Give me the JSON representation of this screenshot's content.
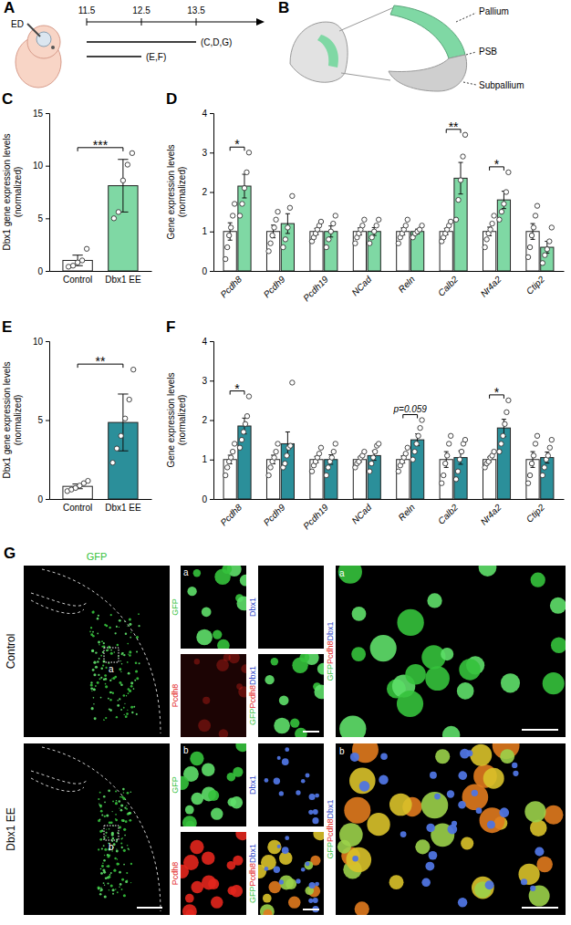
{
  "chart_data": [
    {
      "panel": "C",
      "type": "bar",
      "y_label": "Dbx1 gene expression levels (normalized)",
      "categories": [
        "Control",
        "Dbx1 EE"
      ],
      "values": [
        1.0,
        8.1
      ],
      "errors": [
        0.5,
        2.5
      ],
      "points": [
        [
          0.4,
          0.5,
          0.8,
          1.0,
          2.1
        ],
        [
          5.0,
          5.6,
          8.6,
          10.1,
          11.2
        ]
      ],
      "colors": [
        "#ffffff",
        "#7fd8a4"
      ],
      "ylim": [
        0,
        15
      ],
      "yticks": [
        0,
        5,
        10,
        15
      ],
      "annotations": [
        {
          "text": "***"
        }
      ]
    },
    {
      "panel": "D",
      "type": "bar",
      "y_label": "Gene expression levels (normalized)",
      "categories": [
        "Pcdh8",
        "Pcdh9",
        "Pcdh19",
        "NCad",
        "Reln",
        "Calb2",
        "Nr4a2",
        "Ctip2"
      ],
      "series": [
        {
          "color": "#ffffff",
          "values": [
            1.0,
            1.0,
            1.0,
            1.0,
            1.0,
            1.0,
            1.0,
            1.0
          ],
          "errors": [
            0.22,
            0.16,
            0.08,
            0.09,
            0.09,
            0.08,
            0.11,
            0.2
          ],
          "points": [
            [
              0.3,
              0.6,
              0.9,
              1.1,
              1.4,
              1.7
            ],
            [
              0.5,
              0.7,
              0.9,
              1.1,
              1.3,
              1.5
            ],
            [
              0.75,
              0.85,
              0.95,
              1.05,
              1.15,
              1.25
            ],
            [
              0.7,
              0.85,
              0.95,
              1.05,
              1.15,
              1.3
            ],
            [
              0.7,
              0.85,
              0.95,
              1.05,
              1.15,
              1.3
            ],
            [
              0.75,
              0.85,
              0.95,
              1.05,
              1.15,
              1.25
            ],
            [
              0.6,
              0.8,
              0.95,
              1.05,
              1.2,
              1.4
            ],
            [
              0.35,
              0.6,
              0.9,
              1.1,
              1.4,
              1.65
            ]
          ]
        },
        {
          "color": "#7fd8a4",
          "values": [
            2.15,
            1.2,
            1.0,
            1.0,
            1.0,
            2.35,
            1.8,
            0.6
          ],
          "errors": [
            0.3,
            0.25,
            0.14,
            0.1,
            0.06,
            0.4,
            0.22,
            0.15
          ],
          "points": [
            [
              1.4,
              1.7,
              2.1,
              2.5,
              3.0
            ],
            [
              0.6,
              0.8,
              1.1,
              1.6,
              1.9
            ],
            [
              0.6,
              0.8,
              1.0,
              1.2,
              1.4
            ],
            [
              0.7,
              0.85,
              1.0,
              1.15,
              1.3
            ],
            [
              0.85,
              0.95,
              1.0,
              1.05,
              1.15
            ],
            [
              1.3,
              1.8,
              2.3,
              2.9,
              3.45
            ],
            [
              1.3,
              1.5,
              1.7,
              2.0,
              2.5
            ],
            [
              0.2,
              0.4,
              0.55,
              0.75,
              1.1
            ]
          ]
        }
      ],
      "ylim": [
        0,
        4
      ],
      "yticks": [
        0,
        1,
        2,
        3,
        4
      ],
      "annotations": [
        {
          "category": "Pcdh8",
          "text": "*"
        },
        {
          "category": "Calb2",
          "text": "**"
        },
        {
          "category": "Nr4a2",
          "text": "*"
        }
      ]
    },
    {
      "panel": "E",
      "type": "bar",
      "y_label": "Dbx1 gene expression levels (normalized)",
      "categories": [
        "Control",
        "Dbx1 EE"
      ],
      "values": [
        0.8,
        4.85
      ],
      "errors": [
        0.15,
        1.8
      ],
      "points": [
        [
          0.5,
          0.6,
          0.7,
          0.85,
          1.0,
          1.15
        ],
        [
          2.3,
          3.2,
          4.0,
          5.1,
          6.3,
          8.2
        ]
      ],
      "colors": [
        "#ffffff",
        "#2b8f9a"
      ],
      "ylim": [
        0,
        10
      ],
      "yticks": [
        0,
        5,
        10
      ],
      "annotations": [
        {
          "text": "**"
        }
      ]
    },
    {
      "panel": "F",
      "type": "bar",
      "y_label": "Gene expression levels (normalized)",
      "categories": [
        "Pcdh8",
        "Pcdh9",
        "Pcdh19",
        "NCad",
        "Reln",
        "Calb2",
        "Nr4a2",
        "Ctip2"
      ],
      "series": [
        {
          "color": "#ffffff",
          "values": [
            1.0,
            1.0,
            1.0,
            1.0,
            1.0,
            1.0,
            1.0,
            1.0
          ],
          "errors": [
            0.11,
            0.11,
            0.08,
            0.06,
            0.09,
            0.2,
            0.06,
            0.2
          ],
          "points": [
            [
              0.6,
              0.8,
              0.95,
              1.05,
              1.2,
              1.4
            ],
            [
              0.6,
              0.8,
              0.95,
              1.05,
              1.2,
              1.4
            ],
            [
              0.7,
              0.85,
              0.95,
              1.05,
              1.15,
              1.3
            ],
            [
              0.8,
              0.9,
              0.95,
              1.05,
              1.1,
              1.2
            ],
            [
              0.7,
              0.85,
              0.95,
              1.05,
              1.15,
              1.3
            ],
            [
              0.4,
              0.6,
              0.9,
              1.1,
              1.4,
              1.6
            ],
            [
              0.8,
              0.9,
              0.95,
              1.05,
              1.1,
              1.2
            ],
            [
              0.4,
              0.6,
              0.9,
              1.1,
              1.4,
              1.6
            ]
          ]
        },
        {
          "color": "#2b8f9a",
          "values": [
            1.85,
            1.4,
            1.0,
            1.1,
            1.5,
            1.05,
            1.8,
            1.05
          ],
          "errors": [
            0.2,
            0.3,
            0.12,
            0.12,
            0.15,
            0.17,
            0.22,
            0.14
          ],
          "points": [
            [
              1.3,
              1.5,
              1.7,
              1.9,
              2.1,
              2.6
            ],
            [
              0.8,
              0.9,
              1.1,
              1.3,
              1.35,
              2.95
            ],
            [
              0.6,
              0.8,
              0.95,
              1.05,
              1.2,
              1.4
            ],
            [
              0.7,
              0.9,
              1.05,
              1.2,
              1.35,
              1.4
            ],
            [
              1.0,
              1.2,
              1.4,
              1.6,
              1.8,
              2.0
            ],
            [
              0.5,
              0.7,
              1.0,
              1.2,
              1.4,
              1.5
            ],
            [
              1.2,
              1.4,
              1.6,
              1.9,
              2.2,
              2.5
            ],
            [
              0.6,
              0.8,
              1.0,
              1.1,
              1.3,
              1.5
            ]
          ]
        }
      ],
      "ylim": [
        0,
        4
      ],
      "yticks": [
        0,
        1,
        2,
        3,
        4
      ],
      "annotations": [
        {
          "category": "Pcdh8",
          "text": "*"
        },
        {
          "category": "Reln",
          "text": "p=0.059"
        },
        {
          "category": "Nr4a2",
          "text": "*"
        }
      ]
    }
  ],
  "panel_a": {
    "panel": "A",
    "embryo_label": "ED",
    "timepoints": [
      11.5,
      12.5,
      13.5
    ],
    "ranges": [
      {
        "from": 11.5,
        "to": 13.5,
        "label": "(C,D,G)"
      },
      {
        "from": 11.5,
        "to": 12.5,
        "label": "(E,F)"
      }
    ]
  },
  "panel_b": {
    "panel": "B",
    "labels": [
      "Pallium",
      "PSB",
      "Subpallium"
    ]
  },
  "panel_g": {
    "panel": "G",
    "title": "GFP",
    "rows": [
      {
        "label": "Control",
        "inset": "a"
      },
      {
        "label": "Dbx1 EE",
        "inset": "b"
      }
    ],
    "channels": [
      {
        "name": "GFP",
        "color": "#35c23c"
      },
      {
        "name": "Pcdh8",
        "color": "#e3261d"
      },
      {
        "name": "Dbx1",
        "color": "#2d46c8"
      }
    ]
  }
}
